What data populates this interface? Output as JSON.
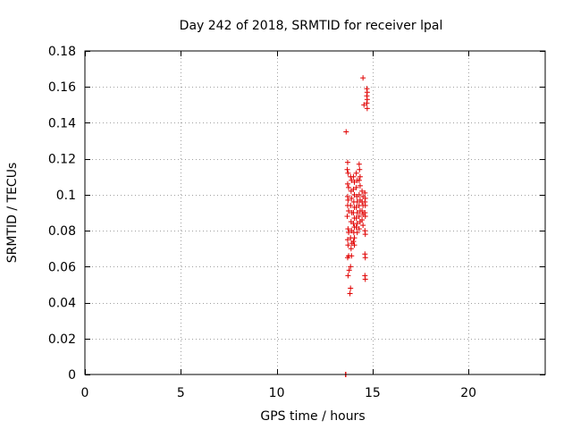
{
  "chart_data": {
    "type": "scatter",
    "title": "Day 242 of 2018, SRMTID for receiver lpal",
    "xlabel": "GPS time / hours",
    "ylabel": "SRMTID / TECUs",
    "xlim": [
      0,
      24
    ],
    "ylim": [
      0,
      0.18
    ],
    "xticks": [
      0,
      5,
      10,
      15,
      20
    ],
    "xtick_labels": [
      "0",
      "5",
      "10",
      "15",
      "20"
    ],
    "yticks": [
      0,
      0.02,
      0.04,
      0.06,
      0.08,
      0.1,
      0.12,
      0.14,
      0.16,
      0.18
    ],
    "ytick_labels": [
      "0",
      "0.02",
      "0.04",
      "0.06",
      "0.08",
      "0.1",
      "0.12",
      "0.14",
      "0.16",
      "0.18"
    ],
    "grid": true,
    "marker": "+",
    "color": "#e00000",
    "series": [
      {
        "name": "SRMTID",
        "points": [
          [
            13.6,
            0.0
          ],
          [
            13.6,
            0.0
          ],
          [
            13.6,
            0.0
          ],
          [
            13.6,
            0.0
          ],
          [
            13.62,
            0.135
          ],
          [
            13.7,
            0.118
          ],
          [
            13.68,
            0.114
          ],
          [
            13.72,
            0.112
          ],
          [
            13.7,
            0.106
          ],
          [
            13.75,
            0.104
          ],
          [
            13.7,
            0.099
          ],
          [
            13.72,
            0.097
          ],
          [
            13.7,
            0.094
          ],
          [
            13.75,
            0.091
          ],
          [
            13.68,
            0.088
          ],
          [
            13.72,
            0.081
          ],
          [
            13.75,
            0.079
          ],
          [
            13.7,
            0.075
          ],
          [
            13.72,
            0.072
          ],
          [
            13.75,
            0.066
          ],
          [
            13.7,
            0.065
          ],
          [
            13.78,
            0.058
          ],
          [
            13.72,
            0.055
          ],
          [
            13.85,
            0.048
          ],
          [
            13.82,
            0.045
          ],
          [
            13.85,
            0.11
          ],
          [
            13.9,
            0.108
          ],
          [
            13.88,
            0.102
          ],
          [
            13.9,
            0.098
          ],
          [
            13.85,
            0.094
          ],
          [
            13.92,
            0.09
          ],
          [
            13.88,
            0.085
          ],
          [
            13.9,
            0.08
          ],
          [
            13.85,
            0.076
          ],
          [
            13.92,
            0.073
          ],
          [
            13.88,
            0.07
          ],
          [
            13.9,
            0.066
          ],
          [
            13.85,
            0.06
          ],
          [
            14.0,
            0.11
          ],
          [
            14.05,
            0.107
          ],
          [
            14.0,
            0.103
          ],
          [
            14.05,
            0.1
          ],
          [
            14.02,
            0.096
          ],
          [
            14.05,
            0.093
          ],
          [
            14.0,
            0.09
          ],
          [
            14.05,
            0.087
          ],
          [
            14.0,
            0.084
          ],
          [
            14.05,
            0.082
          ],
          [
            14.02,
            0.079
          ],
          [
            14.05,
            0.076
          ],
          [
            14.0,
            0.074
          ],
          [
            14.05,
            0.072
          ],
          [
            14.15,
            0.112
          ],
          [
            14.2,
            0.108
          ],
          [
            14.15,
            0.104
          ],
          [
            14.18,
            0.099
          ],
          [
            14.2,
            0.096
          ],
          [
            14.15,
            0.093
          ],
          [
            14.2,
            0.09
          ],
          [
            14.15,
            0.087
          ],
          [
            14.2,
            0.084
          ],
          [
            14.15,
            0.082
          ],
          [
            14.2,
            0.079
          ],
          [
            14.3,
            0.117
          ],
          [
            14.32,
            0.114
          ],
          [
            14.35,
            0.11
          ],
          [
            14.3,
            0.108
          ],
          [
            14.35,
            0.105
          ],
          [
            14.3,
            0.1
          ],
          [
            14.35,
            0.097
          ],
          [
            14.3,
            0.094
          ],
          [
            14.35,
            0.091
          ],
          [
            14.3,
            0.088
          ],
          [
            14.35,
            0.085
          ],
          [
            14.3,
            0.081
          ],
          [
            14.45,
            0.102
          ],
          [
            14.5,
            0.099
          ],
          [
            14.45,
            0.096
          ],
          [
            14.5,
            0.094
          ],
          [
            14.45,
            0.091
          ],
          [
            14.5,
            0.089
          ],
          [
            14.45,
            0.086
          ],
          [
            14.5,
            0.083
          ],
          [
            14.5,
            0.165
          ],
          [
            14.55,
            0.15
          ],
          [
            14.6,
            0.101
          ],
          [
            14.62,
            0.098
          ],
          [
            14.6,
            0.096
          ],
          [
            14.62,
            0.094
          ],
          [
            14.6,
            0.09
          ],
          [
            14.62,
            0.088
          ],
          [
            14.6,
            0.08
          ],
          [
            14.62,
            0.078
          ],
          [
            14.6,
            0.067
          ],
          [
            14.62,
            0.065
          ],
          [
            14.6,
            0.055
          ],
          [
            14.62,
            0.053
          ],
          [
            14.7,
            0.159
          ],
          [
            14.72,
            0.157
          ],
          [
            14.7,
            0.155
          ],
          [
            14.72,
            0.153
          ],
          [
            14.7,
            0.151
          ],
          [
            14.72,
            0.148
          ]
        ]
      }
    ]
  }
}
